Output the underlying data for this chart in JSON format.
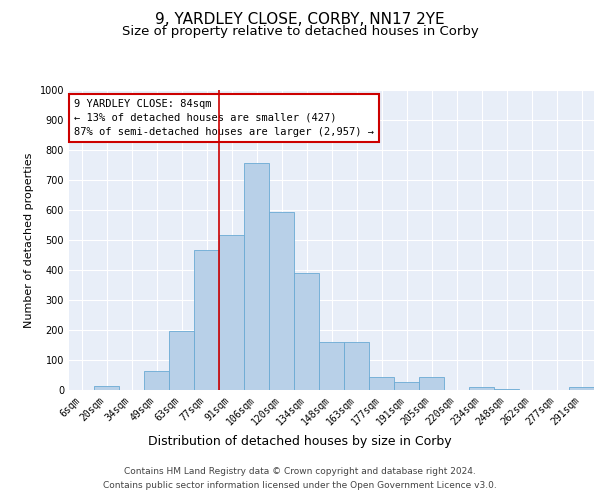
{
  "title": "9, YARDLEY CLOSE, CORBY, NN17 2YE",
  "subtitle": "Size of property relative to detached houses in Corby",
  "xlabel": "Distribution of detached houses by size in Corby",
  "ylabel": "Number of detached properties",
  "categories": [
    "6sqm",
    "20sqm",
    "34sqm",
    "49sqm",
    "63sqm",
    "77sqm",
    "91sqm",
    "106sqm",
    "120sqm",
    "134sqm",
    "148sqm",
    "163sqm",
    "177sqm",
    "191sqm",
    "205sqm",
    "220sqm",
    "234sqm",
    "248sqm",
    "262sqm",
    "277sqm",
    "291sqm"
  ],
  "values": [
    0,
    13,
    0,
    63,
    197,
    468,
    516,
    757,
    594,
    390,
    160,
    160,
    42,
    27,
    43,
    0,
    10,
    3,
    0,
    0,
    10
  ],
  "bar_color": "#b8d0e8",
  "bar_edge_color": "#6aaad4",
  "vline_index": 6.5,
  "vline_color": "#cc0000",
  "annotation_text": "9 YARDLEY CLOSE: 84sqm\n← 13% of detached houses are smaller (427)\n87% of semi-detached houses are larger (2,957) →",
  "annotation_box_facecolor": "#ffffff",
  "annotation_box_edgecolor": "#cc0000",
  "ylim": [
    0,
    1000
  ],
  "yticks": [
    0,
    100,
    200,
    300,
    400,
    500,
    600,
    700,
    800,
    900,
    1000
  ],
  "bg_color": "#e8eef8",
  "footer_line1": "Contains HM Land Registry data © Crown copyright and database right 2024.",
  "footer_line2": "Contains public sector information licensed under the Open Government Licence v3.0.",
  "title_fontsize": 11,
  "subtitle_fontsize": 9.5,
  "xlabel_fontsize": 9,
  "ylabel_fontsize": 8,
  "tick_fontsize": 7,
  "annotation_fontsize": 7.5,
  "footer_fontsize": 6.5
}
